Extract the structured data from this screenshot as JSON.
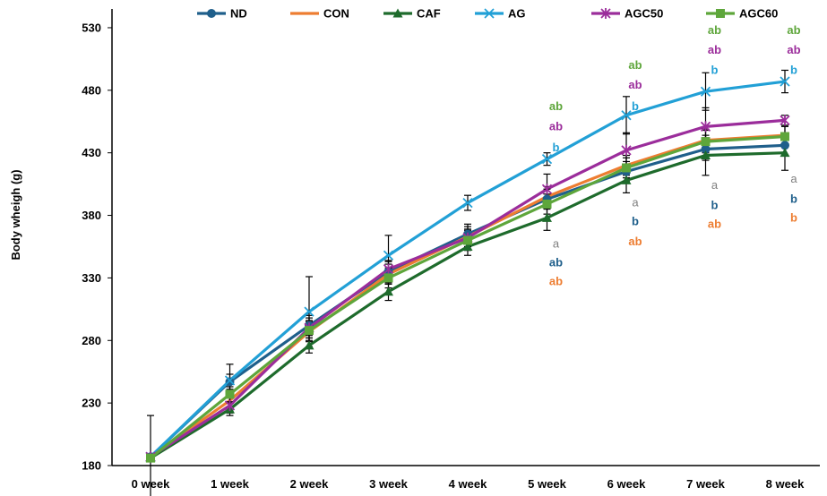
{
  "chart_data": {
    "type": "line",
    "title": "",
    "xlabel": "",
    "ylabel": "Body wheigh (g)",
    "ylim": [
      180,
      545
    ],
    "yticks": [
      180,
      230,
      280,
      330,
      380,
      430,
      480,
      530
    ],
    "categories": [
      "0 week",
      "1 week",
      "2 week",
      "3 week",
      "4 week",
      "5 week",
      "6 week",
      "7 week",
      "8 week"
    ],
    "grid": false,
    "legend_position": "top",
    "series": [
      {
        "name": "ND",
        "color": "#1f5f8b",
        "marker": "circle",
        "values": [
          187,
          247,
          292,
          335,
          365,
          393,
          415,
          433,
          436
        ],
        "errors": [
          0,
          6,
          8,
          8,
          8,
          8,
          8,
          9,
          8
        ]
      },
      {
        "name": "CON",
        "color": "#ed7d31",
        "marker": "none",
        "values": [
          187,
          232,
          287,
          333,
          363,
          395,
          420,
          440,
          444
        ],
        "errors": [
          0,
          6,
          8,
          8,
          8,
          8,
          8,
          9,
          8
        ]
      },
      {
        "name": "CAF",
        "color": "#1e6b2c",
        "marker": "triangle",
        "values": [
          186,
          225,
          276,
          319,
          355,
          378,
          408,
          428,
          430
        ],
        "errors": [
          0,
          5,
          6,
          7,
          7,
          10,
          10,
          16,
          14
        ]
      },
      {
        "name": "AG",
        "color": "#22a0d6",
        "marker": "x",
        "values": [
          187,
          248,
          303,
          348,
          390,
          425,
          460,
          479,
          487
        ],
        "errors": [
          33,
          13,
          28,
          16,
          6,
          5,
          15,
          15,
          9
        ]
      },
      {
        "name": "AGC50",
        "color": "#9b2d9b",
        "marker": "star",
        "values": [
          187,
          228,
          290,
          337,
          362,
          401,
          432,
          451,
          456
        ],
        "errors": [
          0,
          6,
          8,
          7,
          7,
          12,
          14,
          15,
          4
        ]
      },
      {
        "name": "AGC60",
        "color": "#5ea63b",
        "marker": "square",
        "values": [
          186,
          237,
          288,
          330,
          360,
          389,
          418,
          439,
          443
        ],
        "errors": [
          0,
          6,
          8,
          8,
          8,
          8,
          8,
          9,
          8
        ]
      }
    ],
    "annotations": [
      {
        "x_index": 5,
        "labels": [
          {
            "text": "ab",
            "color": "#5ea63b",
            "weight": "bold",
            "value": 467
          },
          {
            "text": "ab",
            "color": "#9b2d9b",
            "weight": "bold",
            "value": 451
          },
          {
            "text": "b",
            "color": "#22a0d6",
            "weight": "bold",
            "value": 434
          },
          {
            "text": "a",
            "color": "#7f7f7f",
            "weight": "normal",
            "value": 357
          },
          {
            "text": "ab",
            "color": "#1f5f8b",
            "weight": "bold",
            "value": 342
          },
          {
            "text": "ab",
            "color": "#ed7d31",
            "weight": "bold",
            "value": 327
          }
        ]
      },
      {
        "x_index": 6,
        "labels": [
          {
            "text": "ab",
            "color": "#5ea63b",
            "weight": "bold",
            "value": 500
          },
          {
            "text": "ab",
            "color": "#9b2d9b",
            "weight": "bold",
            "value": 484
          },
          {
            "text": "b",
            "color": "#22a0d6",
            "weight": "bold",
            "value": 467
          },
          {
            "text": "a",
            "color": "#7f7f7f",
            "weight": "normal",
            "value": 390
          },
          {
            "text": "b",
            "color": "#1f5f8b",
            "weight": "bold",
            "value": 375
          },
          {
            "text": "ab",
            "color": "#ed7d31",
            "weight": "bold",
            "value": 359
          }
        ]
      },
      {
        "x_index": 7,
        "labels": [
          {
            "text": "ab",
            "color": "#5ea63b",
            "weight": "bold",
            "value": 528
          },
          {
            "text": "ab",
            "color": "#9b2d9b",
            "weight": "bold",
            "value": 512
          },
          {
            "text": "b",
            "color": "#22a0d6",
            "weight": "bold",
            "value": 496
          },
          {
            "text": "a",
            "color": "#7f7f7f",
            "weight": "normal",
            "value": 404
          },
          {
            "text": "b",
            "color": "#1f5f8b",
            "weight": "bold",
            "value": 388
          },
          {
            "text": "ab",
            "color": "#ed7d31",
            "weight": "bold",
            "value": 373
          }
        ]
      },
      {
        "x_index": 8,
        "labels": [
          {
            "text": "ab",
            "color": "#5ea63b",
            "weight": "bold",
            "value": 528
          },
          {
            "text": "ab",
            "color": "#9b2d9b",
            "weight": "bold",
            "value": 512
          },
          {
            "text": "b",
            "color": "#22a0d6",
            "weight": "bold",
            "value": 496
          },
          {
            "text": "a",
            "color": "#7f7f7f",
            "weight": "normal",
            "value": 409
          },
          {
            "text": "b",
            "color": "#1f5f8b",
            "weight": "bold",
            "value": 393
          },
          {
            "text": "b",
            "color": "#ed7d31",
            "weight": "bold",
            "value": 378
          }
        ]
      }
    ]
  }
}
